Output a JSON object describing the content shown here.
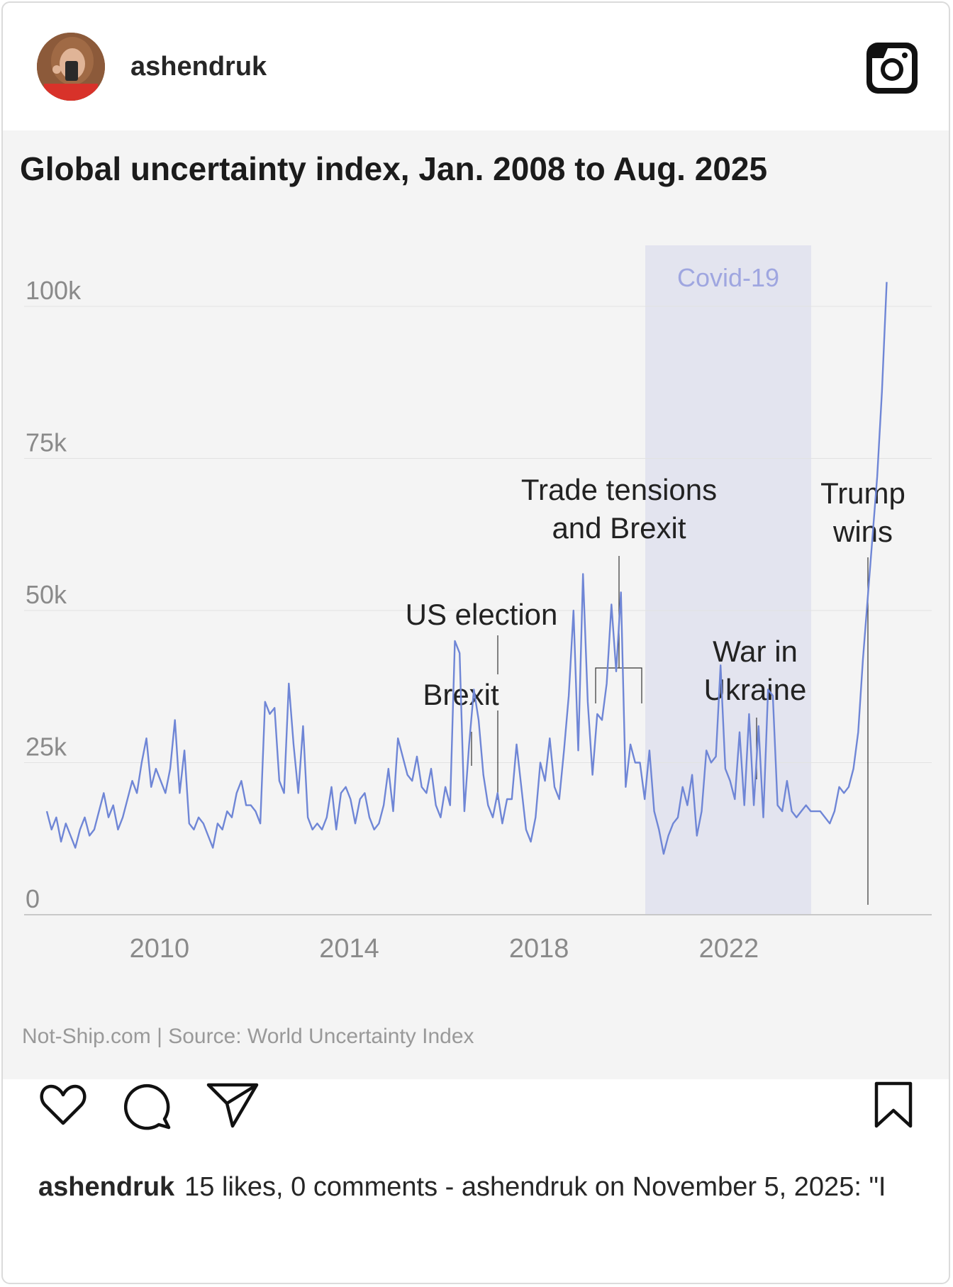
{
  "header": {
    "username": "ashendruk",
    "avatar_icon": "profile-photo",
    "instagram_icon": "instagram-logo-icon"
  },
  "post_image": {
    "title": "Global uncertainty index, Jan. 2008 to Aug. 2025",
    "footer": "Not-Ship.com | Source: World Uncertainty Index",
    "shaded_region_label": "Covid-19",
    "annotations": {
      "brexit": "Brexit",
      "us_election": "US election",
      "trade_line1": "Trade tensions",
      "trade_line2": "and Brexit",
      "war_line1": "War in",
      "war_line2": "Ukraine",
      "trump_line1": "Trump",
      "trump_line2": "wins"
    },
    "colors": {
      "line": "#6f86d6",
      "shade": "#e3e4ef",
      "covid_text": "#9fa6e0",
      "background": "#f4f4f4"
    }
  },
  "chart_data": {
    "type": "line",
    "title": "Global uncertainty index, Jan. 2008 to Aug. 2025",
    "xlabel": "",
    "ylabel": "",
    "x_ticks": [
      "2010",
      "2014",
      "2018",
      "2022"
    ],
    "y_ticks": [
      "0",
      "25k",
      "50k",
      "75k",
      "100k"
    ],
    "xlim": [
      2008.0,
      2026.5
    ],
    "ylim": [
      0,
      100000
    ],
    "grid": "horizontal",
    "shaded_region": {
      "label": "Covid-19",
      "x_start": 2020.0,
      "x_end": 2023.33
    },
    "series": [
      {
        "x": [
          2008.0,
          2008.1,
          2008.2,
          2008.3,
          2008.4,
          2008.5,
          2008.6,
          2008.7,
          2008.8,
          2008.9,
          2009.0,
          2009.1,
          2009.2,
          2009.3,
          2009.4,
          2009.5,
          2009.6,
          2009.7,
          2009.8,
          2009.9,
          2010.0,
          2010.1,
          2010.2,
          2010.3,
          2010.4,
          2010.5,
          2010.6,
          2010.7,
          2010.8,
          2010.9,
          2011.0,
          2011.1,
          2011.2,
          2011.3,
          2011.4,
          2011.5,
          2011.6,
          2011.7,
          2011.8,
          2011.9,
          2012.0,
          2012.1,
          2012.2,
          2012.3,
          2012.4,
          2012.5,
          2012.6,
          2012.7,
          2012.8,
          2012.9,
          2013.0,
          2013.1,
          2013.2,
          2013.3,
          2013.4,
          2013.5,
          2013.6,
          2013.7,
          2013.8,
          2013.9,
          2014.0,
          2014.1,
          2014.2,
          2014.3,
          2014.4,
          2014.5,
          2014.6,
          2014.7,
          2014.8,
          2014.9,
          2015.0,
          2015.1,
          2015.2,
          2015.3,
          2015.4,
          2015.5,
          2015.6,
          2015.7,
          2015.8,
          2015.9,
          2016.0,
          2016.1,
          2016.2,
          2016.3,
          2016.4,
          2016.5,
          2016.6,
          2016.7,
          2016.8,
          2016.9,
          2017.0,
          2017.1,
          2017.2,
          2017.3,
          2017.4,
          2017.5,
          2017.6,
          2017.7,
          2017.8,
          2017.9,
          2018.0,
          2018.1,
          2018.2,
          2018.3,
          2018.4,
          2018.5,
          2018.6,
          2018.7,
          2018.8,
          2018.9,
          2019.0,
          2019.1,
          2019.2,
          2019.3,
          2019.4,
          2019.5,
          2019.6,
          2019.7,
          2019.8,
          2019.9,
          2020.0,
          2020.1,
          2020.2,
          2020.3,
          2020.4,
          2020.5,
          2020.6,
          2020.7,
          2020.8,
          2020.9,
          2021.0,
          2021.1,
          2021.2,
          2021.3,
          2021.4,
          2021.5,
          2021.6,
          2021.7,
          2021.8,
          2021.9,
          2022.0,
          2022.1,
          2022.2,
          2022.3,
          2022.4,
          2022.5,
          2022.6,
          2022.7,
          2022.8,
          2022.9,
          2023.0,
          2023.1,
          2023.2,
          2023.3,
          2023.4,
          2023.5,
          2023.6,
          2023.7,
          2023.8,
          2023.9,
          2024.0,
          2024.1,
          2024.2,
          2024.3,
          2024.4,
          2024.5,
          2024.6,
          2024.7,
          2024.8,
          2024.9,
          2025.0,
          2025.1,
          2025.2,
          2025.3,
          2025.4,
          2025.5,
          2025.6,
          2025.7
        ],
        "values": [
          17000,
          14000,
          16000,
          12000,
          15000,
          13000,
          11000,
          14000,
          16000,
          13000,
          14000,
          17000,
          20000,
          16000,
          18000,
          14000,
          16000,
          19000,
          22000,
          20000,
          25000,
          29000,
          21000,
          24000,
          22000,
          20000,
          24000,
          32000,
          20000,
          27000,
          15000,
          14000,
          16000,
          15000,
          13000,
          11000,
          15000,
          14000,
          17000,
          16000,
          20000,
          22000,
          18000,
          18000,
          17000,
          15000,
          35000,
          33000,
          34000,
          22000,
          20000,
          38000,
          28000,
          20000,
          31000,
          16000,
          14000,
          15000,
          14000,
          16000,
          21000,
          14000,
          20000,
          21000,
          19000,
          15000,
          19000,
          20000,
          16000,
          14000,
          15000,
          18000,
          24000,
          17000,
          29000,
          26000,
          23000,
          22000,
          26000,
          21000,
          20000,
          24000,
          18000,
          16000,
          21000,
          18000,
          45000,
          43000,
          17000,
          28000,
          37000,
          32000,
          23000,
          18000,
          16000,
          20000,
          15000,
          19000,
          19000,
          28000,
          21000,
          14000,
          12000,
          16000,
          25000,
          22000,
          29000,
          21000,
          19000,
          27000,
          36000,
          50000,
          27000,
          56000,
          35000,
          23000,
          33000,
          32000,
          38000,
          51000,
          40000,
          53000,
          21000,
          28000,
          25000,
          25000,
          19000,
          27000,
          17000,
          14000,
          10000,
          13000,
          15000,
          16000,
          21000,
          18000,
          23000,
          13000,
          17000,
          27000,
          25000,
          26000,
          41000,
          24000,
          22000,
          19000,
          30000,
          18000,
          33000,
          18000,
          31000,
          16000,
          37000,
          36000,
          18000,
          17000,
          22000,
          17000,
          16000,
          17000,
          18000,
          17000,
          17000,
          17000,
          16000,
          15000,
          17000,
          21000,
          20000,
          21000,
          24000,
          30000,
          42000,
          52000,
          62000,
          72000,
          86000,
          104000
        ]
      }
    ]
  },
  "footer_actions": {
    "like_icon": "heart-icon",
    "comment_icon": "comment-icon",
    "share_icon": "send-icon",
    "save_icon": "bookmark-icon"
  },
  "caption": {
    "username": "ashendruk",
    "text": "15 likes, 0 comments - ashendruk on November 5, 2025: \"I"
  }
}
